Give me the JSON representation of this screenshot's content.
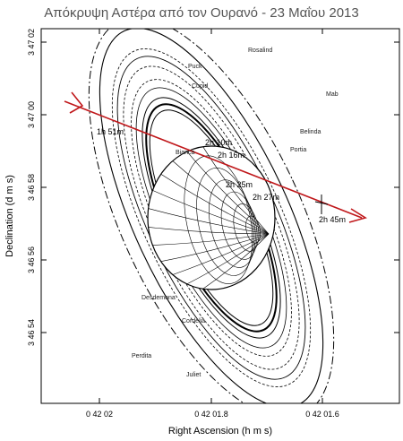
{
  "title": "Απόκρυψη Αστέρα από τον Ουρανό - 23 Μαΐου 2013",
  "axes": {
    "xlabel": "Right Ascension (h m s)",
    "ylabel": "Declination (d m s)",
    "xticks": [
      "0 42 02",
      "0 42 01.8",
      "0 42 01.6"
    ],
    "yticks": [
      "3 47 02",
      "3 47 00",
      "3 46 58",
      "3 46 56",
      "3 46 54"
    ]
  },
  "moons": [
    "Rosalind",
    "Puck",
    "Cupid",
    "Mab",
    "Belinda",
    "Portia",
    "Bianca",
    "Desdemona",
    "Cordelia",
    "Perdita",
    "Juliet"
  ],
  "times": [
    "1h 51m",
    "2h 10m",
    "2h 16m",
    "2h 25m",
    "2h 27m",
    "2h 45m"
  ],
  "colors": {
    "track": "#c0181b",
    "ink": "#000000"
  }
}
